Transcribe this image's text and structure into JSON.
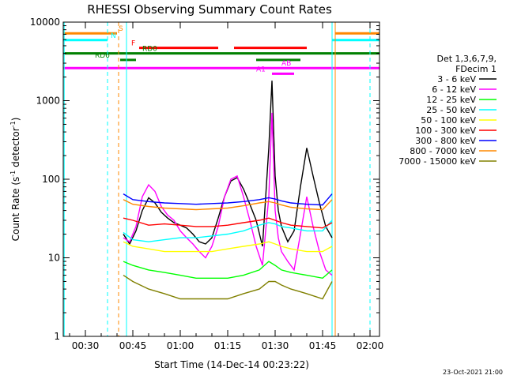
{
  "chart_data": {
    "type": "line",
    "title": "RHESSI Observing Summary Count Rates",
    "xlabel": "Start Time (14-Dec-14 00:23:22)",
    "ylabel_main": "Count Rate (s",
    "ylabel_sup1": "-1",
    "ylabel_mid": " detector",
    "ylabel_sup2": "-1",
    "ylabel_end": ")",
    "y_log": true,
    "xlim_min": [
      23,
      123
    ],
    "ylim": [
      1,
      10000
    ],
    "x_ticks": [
      {
        "min": 30,
        "label": "00:30"
      },
      {
        "min": 45,
        "label": "00:45"
      },
      {
        "min": 60,
        "label": "01:00"
      },
      {
        "min": 75,
        "label": "01:15"
      },
      {
        "min": 90,
        "label": "01:30"
      },
      {
        "min": 105,
        "label": "01:45"
      },
      {
        "min": 120,
        "label": "02:00"
      }
    ],
    "y_ticks": [
      {
        "v": 1,
        "label": "1"
      },
      {
        "v": 10,
        "label": "10"
      },
      {
        "v": 100,
        "label": "100"
      },
      {
        "v": 1000,
        "label": "1000"
      },
      {
        "v": 10000,
        "label": "10000"
      }
    ],
    "legend_header": [
      "Det 1,3,6,7,9,",
      "FDecim 1"
    ],
    "legend_placement": "right",
    "timestamp": "23-Oct-2021 21:00",
    "series": [
      {
        "name": "3 - 6 keV",
        "color": "#000000",
        "x": [
          42,
          44,
          46,
          48,
          50,
          52,
          54,
          56,
          58,
          60,
          62,
          64,
          66,
          68,
          70,
          72,
          74,
          76,
          78,
          80,
          82,
          84,
          86,
          88,
          89,
          90,
          91,
          92,
          94,
          96,
          98,
          100,
          102,
          104,
          106,
          108
        ],
        "y": [
          20,
          15,
          22,
          40,
          58,
          50,
          38,
          32,
          28,
          26,
          24,
          20,
          16,
          15,
          18,
          32,
          60,
          95,
          105,
          75,
          48,
          30,
          14,
          250,
          1800,
          110,
          40,
          25,
          16,
          22,
          80,
          250,
          110,
          50,
          25,
          18
        ]
      },
      {
        "name": "6 - 12 keV",
        "color": "#ff00ff",
        "x": [
          42,
          44,
          46,
          48,
          50,
          52,
          54,
          56,
          58,
          60,
          62,
          64,
          66,
          68,
          70,
          72,
          74,
          76,
          78,
          80,
          82,
          84,
          86,
          88,
          89,
          90,
          91,
          92,
          94,
          96,
          98,
          100,
          102,
          104,
          106,
          108
        ],
        "y": [
          18,
          16,
          25,
          60,
          85,
          70,
          45,
          35,
          30,
          22,
          18,
          15,
          12,
          10,
          14,
          25,
          60,
          100,
          110,
          60,
          30,
          14,
          8,
          60,
          700,
          40,
          18,
          12,
          9,
          7,
          20,
          60,
          25,
          12,
          7,
          6
        ]
      },
      {
        "name": "12 - 25 keV",
        "color": "#00ff00",
        "x": [
          42,
          45,
          50,
          55,
          60,
          65,
          70,
          75,
          80,
          85,
          88,
          90,
          92,
          95,
          100,
          105,
          108
        ],
        "y": [
          9,
          8,
          7,
          6.5,
          6,
          5.5,
          5.5,
          5.5,
          6,
          7,
          9,
          8,
          7,
          6.5,
          6,
          5.5,
          7
        ]
      },
      {
        "name": "25 - 50 keV",
        "color": "#00ffff",
        "x": [
          42,
          45,
          50,
          55,
          60,
          65,
          70,
          75,
          80,
          85,
          88,
          90,
          92,
          95,
          100,
          105,
          108
        ],
        "y": [
          21,
          17,
          16,
          17,
          18,
          18,
          19,
          20,
          22,
          26,
          28,
          27,
          25,
          24,
          22,
          22,
          30
        ]
      },
      {
        "name": "50 - 100 keV",
        "color": "#ffff00",
        "x": [
          42,
          45,
          50,
          55,
          60,
          65,
          70,
          75,
          80,
          85,
          88,
          90,
          92,
          95,
          100,
          105,
          108
        ],
        "y": [
          16,
          14,
          13,
          12,
          12,
          12,
          12,
          13,
          14,
          15,
          16,
          15,
          14,
          13,
          12,
          12,
          14
        ]
      },
      {
        "name": "100 - 300 keV",
        "color": "#ff0000",
        "x": [
          42,
          45,
          50,
          55,
          60,
          65,
          70,
          75,
          80,
          85,
          88,
          90,
          92,
          95,
          100,
          105,
          108
        ],
        "y": [
          32,
          30,
          26,
          27,
          26,
          25,
          25,
          26,
          28,
          30,
          32,
          30,
          28,
          26,
          25,
          24,
          28
        ]
      },
      {
        "name": "300 - 800 keV",
        "color": "#0000ff",
        "x": [
          42,
          45,
          50,
          55,
          60,
          65,
          70,
          75,
          80,
          85,
          88,
          90,
          92,
          95,
          100,
          105,
          108
        ],
        "y": [
          65,
          55,
          52,
          50,
          49,
          48,
          49,
          50,
          52,
          55,
          58,
          56,
          53,
          50,
          48,
          47,
          65
        ]
      },
      {
        "name": "800 - 7000 keV",
        "color": "#ff8800",
        "x": [
          42,
          45,
          50,
          55,
          60,
          65,
          70,
          75,
          80,
          85,
          88,
          90,
          92,
          95,
          100,
          105,
          108
        ],
        "y": [
          55,
          48,
          45,
          43,
          42,
          41,
          42,
          43,
          46,
          50,
          52,
          50,
          47,
          44,
          42,
          41,
          55
        ]
      },
      {
        "name": "7000 - 15000 keV",
        "color": "#808000",
        "x": [
          42,
          45,
          50,
          55,
          60,
          65,
          70,
          75,
          80,
          85,
          88,
          90,
          92,
          95,
          100,
          105,
          108
        ],
        "y": [
          6,
          5,
          4,
          3.5,
          3,
          3,
          3,
          3,
          3.5,
          4,
          5,
          5,
          4.5,
          4,
          3.5,
          3,
          5
        ]
      }
    ],
    "flags": [
      {
        "label": "S",
        "color": "#ff8800",
        "y": 7200,
        "segments": [
          [
            23,
            40
          ],
          [
            109,
            123
          ]
        ],
        "label_x": 40.5
      },
      {
        "label": "N",
        "color": "#00ffff",
        "y": 5900,
        "segments": [
          [
            23,
            37
          ],
          [
            108,
            123
          ]
        ],
        "label_x": 38
      },
      {
        "label": "F",
        "color": "#ff0000",
        "y": 4700,
        "segments": [
          [
            47,
            72
          ],
          [
            77,
            100
          ]
        ],
        "label_x": 44.5
      },
      {
        "label": "RD0",
        "color": "#008000",
        "y": 4000,
        "segments": [
          [
            23,
            123
          ]
        ],
        "label_x": 48
      },
      {
        "label": "RD6",
        "color": "#008000",
        "y": 3300,
        "segments": [
          [
            41,
            46
          ],
          [
            84,
            98
          ]
        ],
        "label_x": 33
      },
      {
        "label": "AB",
        "color": "#ff00ff",
        "y": 2600,
        "segments": [
          [
            23,
            123
          ]
        ],
        "label_x": 92
      },
      {
        "label": "A1",
        "color": "#ff00ff",
        "y": 2200,
        "segments": [
          [
            89,
            96
          ]
        ],
        "label_x": 84
      }
    ],
    "vlines": [
      {
        "min": 23.3,
        "color": "#00ffff",
        "dash": false
      },
      {
        "min": 37,
        "color": "#00ffff",
        "dash": true
      },
      {
        "min": 40.5,
        "color": "#ff8800",
        "dash": true
      },
      {
        "min": 43,
        "color": "#00ffff",
        "dash": false
      },
      {
        "min": 108,
        "color": "#00ffff",
        "dash": false
      },
      {
        "min": 109,
        "color": "#ff8800",
        "dash": false
      },
      {
        "min": 120,
        "color": "#00ffff",
        "dash": true
      }
    ]
  }
}
